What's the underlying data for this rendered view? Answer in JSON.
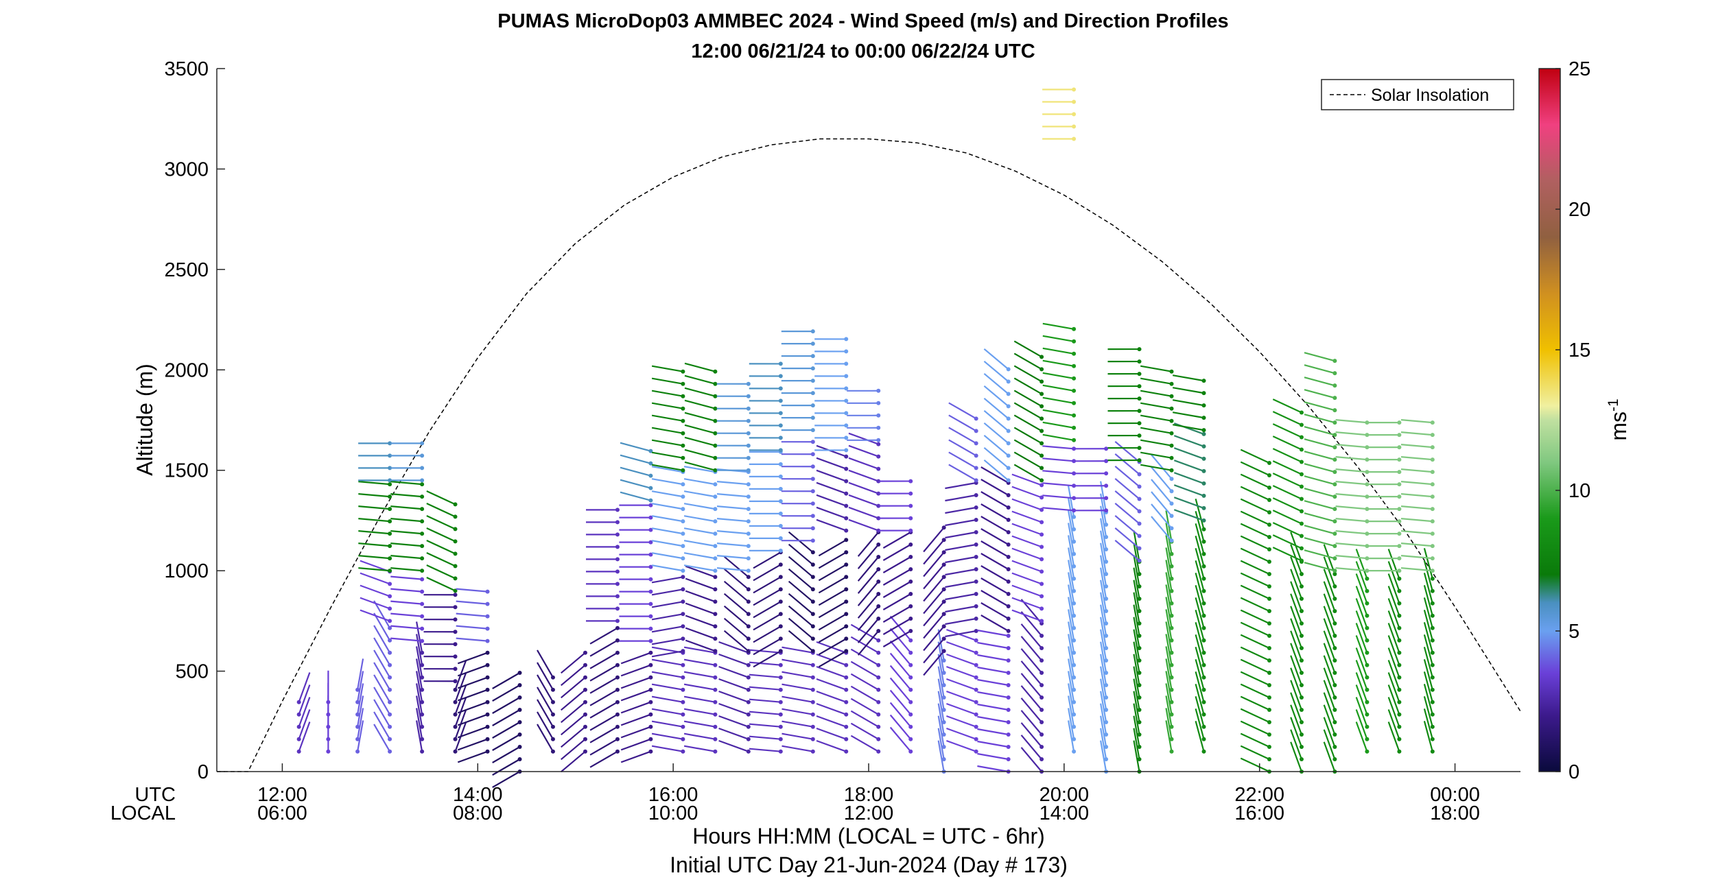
{
  "chart_data": {
    "type": "wind-barb profile",
    "title": "PUMAS MicroDop03 AMMBEC 2024 - Wind Speed (m/s) and Direction Profiles",
    "subtitle": "12:00 06/21/24 to 00:00 06/22/24  UTC",
    "ylabel": "Altitude (m)",
    "xlabel": "Hours HH:MM  (LOCAL = UTC - 6hr)",
    "xlabel2": "Initial UTC Day 21-Jun-2024 (Day # 173)",
    "utc_row_label": "UTC",
    "local_row_label": "LOCAL",
    "xlim": [
      11.33,
      24.67
    ],
    "ylim": [
      0,
      3500
    ],
    "x_ticks": [
      12,
      14,
      16,
      18,
      20,
      22,
      24
    ],
    "x_tick_labels_utc": [
      "12:00",
      "14:00",
      "16:00",
      "18:00",
      "20:00",
      "22:00",
      "00:00"
    ],
    "x_tick_labels_local": [
      "06:00",
      "08:00",
      "10:00",
      "12:00",
      "14:00",
      "16:00",
      "18:00"
    ],
    "y_ticks": [
      0,
      500,
      1000,
      1500,
      2000,
      2500,
      3000,
      3500
    ],
    "y_tick_labels": [
      "0",
      "500",
      "1000",
      "1500",
      "2000",
      "2500",
      "3000",
      "3500"
    ],
    "colorbar": {
      "label": "ms",
      "label_sup": "-1",
      "range": [
        0,
        25
      ],
      "ticks": [
        0,
        5,
        10,
        15,
        20,
        25
      ],
      "tick_labels": [
        "0",
        "5",
        "10",
        "15",
        "20",
        "25"
      ],
      "stops": [
        {
          "v": 0,
          "color": "#0a0a3c"
        },
        {
          "v": 2,
          "color": "#3c1a8c"
        },
        {
          "v": 3.5,
          "color": "#6a40d8"
        },
        {
          "v": 5,
          "color": "#6aa0f0"
        },
        {
          "v": 6,
          "color": "#4a90c0"
        },
        {
          "v": 7,
          "color": "#0a7a0a"
        },
        {
          "v": 9,
          "color": "#1a9a1a"
        },
        {
          "v": 11,
          "color": "#80c880"
        },
        {
          "v": 12.5,
          "color": "#c0e0a0"
        },
        {
          "v": 13,
          "color": "#f0f0a0"
        },
        {
          "v": 15,
          "color": "#f0c000"
        },
        {
          "v": 17,
          "color": "#d09020"
        },
        {
          "v": 19,
          "color": "#906040"
        },
        {
          "v": 21,
          "color": "#b06060"
        },
        {
          "v": 23,
          "color": "#f04080"
        },
        {
          "v": 25,
          "color": "#c00010"
        }
      ]
    },
    "legend": {
      "label": "Solar Insolation",
      "placement": "top-right",
      "style": "dashed"
    },
    "solar_insolation_curve": [
      [
        11.33,
        0
      ],
      [
        11.65,
        0
      ],
      [
        12,
        350
      ],
      [
        12.5,
        820
      ],
      [
        13,
        1270
      ],
      [
        13.5,
        1690
      ],
      [
        14,
        2060
      ],
      [
        14.5,
        2380
      ],
      [
        15,
        2630
      ],
      [
        15.5,
        2820
      ],
      [
        16,
        2960
      ],
      [
        16.5,
        3060
      ],
      [
        17,
        3120
      ],
      [
        17.5,
        3150
      ],
      [
        18,
        3150
      ],
      [
        18.5,
        3130
      ],
      [
        19,
        3080
      ],
      [
        19.5,
        2990
      ],
      [
        20,
        2870
      ],
      [
        20.5,
        2720
      ],
      [
        21,
        2540
      ],
      [
        21.5,
        2330
      ],
      [
        22,
        2090
      ],
      [
        22.5,
        1820
      ],
      [
        23,
        1520
      ],
      [
        23.5,
        1190
      ],
      [
        24,
        820
      ],
      [
        24.67,
        300
      ]
    ],
    "profiles": [
      {
        "t": 12.17,
        "segments": [
          [
            100,
            400,
            3,
            200
          ]
        ]
      },
      {
        "t": 12.47,
        "segments": [
          [
            100,
            350,
            3.5,
            180
          ]
        ]
      },
      {
        "t": 12.77,
        "segments": [
          [
            100,
            450,
            4,
            190
          ]
        ]
      },
      {
        "t": 13.1,
        "segments": [
          [
            100,
            750,
            4,
            150
          ],
          [
            750,
            1000,
            3.5,
            110
          ],
          [
            1000,
            1450,
            7.5,
            95
          ],
          [
            1450,
            1650,
            6,
            90
          ]
        ]
      },
      {
        "t": 13.43,
        "segments": [
          [
            100,
            650,
            2.5,
            170
          ],
          [
            650,
            1000,
            3.5,
            95
          ],
          [
            1000,
            1450,
            7.5,
            95
          ],
          [
            1450,
            1650,
            5.5,
            90
          ]
        ]
      },
      {
        "t": 13.77,
        "segments": [
          [
            100,
            450,
            1.5,
            200
          ],
          [
            450,
            900,
            2,
            90
          ],
          [
            900,
            1350,
            7.5,
            115
          ]
        ]
      },
      {
        "t": 14.1,
        "segments": [
          [
            100,
            650,
            1,
            70
          ],
          [
            650,
            900,
            4,
            95
          ]
        ]
      },
      {
        "t": 14.43,
        "segments": [
          [
            0,
            550,
            1,
            60
          ]
        ]
      },
      {
        "t": 14.77,
        "segments": [
          [
            100,
            500,
            1.5,
            150
          ]
        ]
      },
      {
        "t": 15.1,
        "segments": [
          [
            100,
            600,
            2,
            50
          ]
        ]
      },
      {
        "t": 15.43,
        "segments": [
          [
            100,
            750,
            1.5,
            60
          ],
          [
            750,
            1350,
            3,
            90
          ]
        ]
      },
      {
        "t": 15.77,
        "segments": [
          [
            100,
            650,
            2,
            70
          ],
          [
            650,
            1350,
            3.5,
            90
          ],
          [
            1350,
            1600,
            6,
            105
          ]
        ]
      },
      {
        "t": 16.1,
        "segments": [
          [
            100,
            600,
            3,
            100
          ],
          [
            600,
            1000,
            2.5,
            80
          ],
          [
            1000,
            1500,
            5,
            100
          ],
          [
            1500,
            2050,
            7.5,
            100
          ]
        ]
      },
      {
        "t": 16.43,
        "segments": [
          [
            100,
            600,
            3,
            100
          ],
          [
            600,
            1000,
            2,
            110
          ],
          [
            1000,
            1500,
            5,
            100
          ],
          [
            1500,
            2000,
            7.5,
            105
          ]
        ]
      },
      {
        "t": 16.77,
        "segments": [
          [
            100,
            600,
            2.5,
            110
          ],
          [
            600,
            1000,
            1.5,
            130
          ],
          [
            1000,
            1500,
            5,
            95
          ],
          [
            1500,
            1950,
            5.5,
            90
          ]
        ]
      },
      {
        "t": 17.1,
        "segments": [
          [
            100,
            600,
            3,
            95
          ],
          [
            600,
            1100,
            1.5,
            60
          ],
          [
            1100,
            1600,
            5,
            90
          ],
          [
            1600,
            2050,
            6,
            90
          ]
        ]
      },
      {
        "t": 17.43,
        "segments": [
          [
            100,
            600,
            3,
            100
          ],
          [
            600,
            1150,
            1,
            130
          ],
          [
            1150,
            1700,
            4,
            90
          ],
          [
            1700,
            2250,
            5.5,
            90
          ]
        ]
      },
      {
        "t": 17.77,
        "segments": [
          [
            100,
            600,
            3,
            110
          ],
          [
            600,
            1200,
            1,
            60
          ],
          [
            1200,
            1600,
            2.5,
            110
          ],
          [
            1600,
            2200,
            5,
            90
          ]
        ]
      },
      {
        "t": 18.1,
        "segments": [
          [
            100,
            700,
            3,
            120
          ],
          [
            700,
            1200,
            1.5,
            40
          ],
          [
            1200,
            1650,
            3,
            110
          ],
          [
            1650,
            1950,
            4.5,
            90
          ]
        ]
      },
      {
        "t": 18.43,
        "segments": [
          [
            100,
            700,
            3.5,
            140
          ],
          [
            700,
            1200,
            2,
            60
          ],
          [
            1200,
            1500,
            3.5,
            90
          ]
        ]
      },
      {
        "t": 18.77,
        "segments": [
          [
            0,
            600,
            4.5,
            170
          ],
          [
            600,
            1250,
            2,
            40
          ]
        ]
      },
      {
        "t": 19.1,
        "segments": [
          [
            100,
            700,
            3.5,
            110
          ],
          [
            700,
            1450,
            2.5,
            80
          ],
          [
            1450,
            1800,
            4,
            120
          ]
        ]
      },
      {
        "t": 19.43,
        "segments": [
          [
            0,
            700,
            3.5,
            100
          ],
          [
            700,
            1450,
            2,
            120
          ],
          [
            1450,
            2050,
            5,
            130
          ]
        ]
      },
      {
        "t": 19.77,
        "segments": [
          [
            0,
            750,
            2.5,
            140
          ],
          [
            750,
            1450,
            3.5,
            110
          ],
          [
            1450,
            2100,
            7,
            120
          ]
        ]
      },
      {
        "t": 20.1,
        "segments": [
          [
            100,
            1300,
            5,
            170
          ],
          [
            1300,
            1650,
            3.5,
            95
          ],
          [
            1650,
            2250,
            9,
            100
          ],
          [
            3150,
            3450,
            13.5,
            90
          ]
        ]
      },
      {
        "t": 20.43,
        "segments": [
          [
            0,
            1300,
            5,
            170
          ],
          [
            1300,
            1650,
            3.5,
            90
          ]
        ]
      },
      {
        "t": 20.77,
        "segments": [
          [
            0,
            1050,
            7.5,
            170
          ],
          [
            1050,
            1550,
            4,
            130
          ],
          [
            1550,
            2150,
            7.5,
            90
          ]
        ]
      },
      {
        "t": 21.1,
        "segments": [
          [
            100,
            1150,
            9.5,
            170
          ],
          [
            1150,
            1500,
            5,
            140
          ],
          [
            1500,
            2000,
            7.5,
            100
          ]
        ]
      },
      {
        "t": 21.43,
        "segments": [
          [
            100,
            1250,
            8,
            165
          ],
          [
            1250,
            1700,
            6.5,
            110
          ],
          [
            1700,
            2000,
            7.5,
            100
          ]
        ]
      },
      {
        "t": 22.1,
        "segments": [
          [
            0,
            1550,
            8,
            115
          ]
        ]
      },
      {
        "t": 22.43,
        "segments": [
          [
            0,
            1050,
            8,
            160
          ],
          [
            1050,
            1800,
            8.5,
            115
          ]
        ]
      },
      {
        "t": 22.77,
        "segments": [
          [
            0,
            1000,
            8,
            160
          ],
          [
            1000,
            2100,
            10,
            105
          ]
        ]
      },
      {
        "t": 23.1,
        "segments": [
          [
            100,
            1000,
            9,
            160
          ],
          [
            1000,
            1750,
            11,
            95
          ]
        ]
      },
      {
        "t": 23.43,
        "segments": [
          [
            100,
            1000,
            8,
            160
          ],
          [
            1000,
            1750,
            11,
            90
          ]
        ]
      },
      {
        "t": 23.77,
        "segments": [
          [
            100,
            1000,
            8,
            165
          ],
          [
            1000,
            1750,
            11,
            95
          ]
        ]
      }
    ]
  }
}
